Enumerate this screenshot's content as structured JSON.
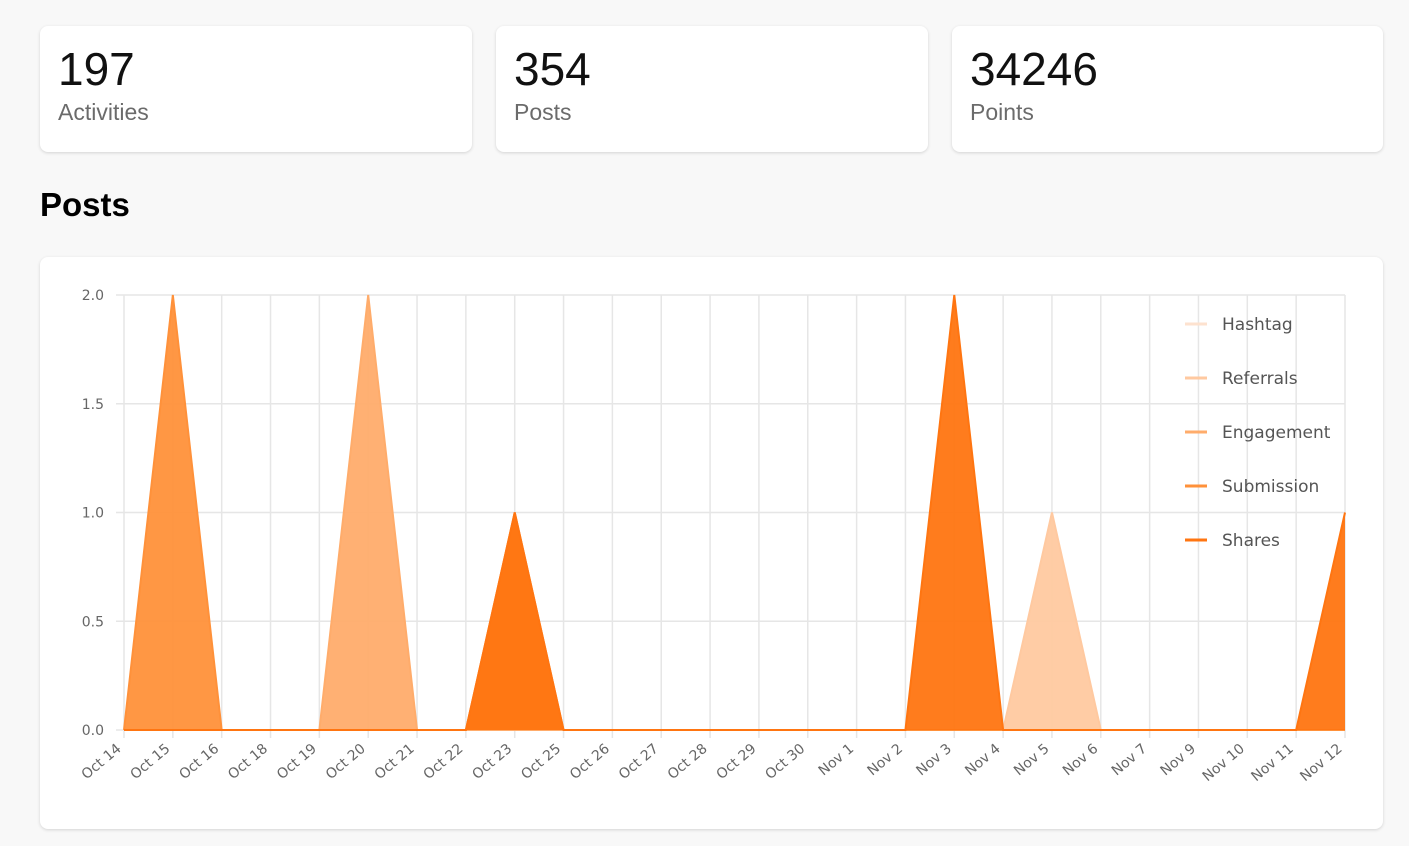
{
  "stats": [
    {
      "value": "197",
      "label": "Activities"
    },
    {
      "value": "354",
      "label": "Posts"
    },
    {
      "value": "34246",
      "label": "Points"
    }
  ],
  "section_title": "Posts",
  "chart_data": {
    "type": "area",
    "title": "",
    "xlabel": "",
    "ylabel": "",
    "ylim": [
      0,
      2
    ],
    "yticks": [
      "0.0",
      "0.5",
      "1.0",
      "1.5",
      "2.0"
    ],
    "grid": true,
    "legend_position": "top-right",
    "categories": [
      "Oct 14",
      "Oct 15",
      "Oct 16",
      "Oct 18",
      "Oct 19",
      "Oct 20",
      "Oct 21",
      "Oct 22",
      "Oct 23",
      "Oct 25",
      "Oct 26",
      "Oct 27",
      "Oct 28",
      "Oct 29",
      "Oct 30",
      "Nov 1",
      "Nov 2",
      "Nov 3",
      "Nov 4",
      "Nov 5",
      "Nov 6",
      "Nov 7",
      "Nov 9",
      "Nov 10",
      "Nov 11",
      "Nov 12"
    ],
    "series": [
      {
        "name": "Hashtag",
        "color": "#fde2cf",
        "values": [
          0,
          0,
          0,
          0,
          0,
          0,
          0,
          0,
          0,
          0,
          0,
          0,
          0,
          0,
          0,
          0,
          0,
          0,
          0,
          0,
          0,
          0,
          0,
          0,
          0,
          0
        ]
      },
      {
        "name": "Referrals",
        "color": "#ffc9a0",
        "values": [
          0,
          0,
          0,
          0,
          0,
          0,
          0,
          0,
          0,
          0,
          0,
          0,
          0,
          0,
          0,
          0,
          0,
          0,
          0,
          1,
          0,
          0,
          0,
          0,
          0,
          0
        ]
      },
      {
        "name": "Engagement",
        "color": "#ffac6b",
        "values": [
          0,
          0,
          0,
          0,
          0,
          2,
          0,
          0,
          0,
          0,
          0,
          0,
          0,
          0,
          0,
          0,
          0,
          0,
          0,
          0,
          0,
          0,
          0,
          0,
          0,
          0
        ]
      },
      {
        "name": "Submission",
        "color": "#ff913a",
        "values": [
          0,
          2,
          0,
          0,
          0,
          0,
          0,
          0,
          1,
          0,
          0,
          0,
          0,
          0,
          0,
          0,
          0,
          0,
          0,
          0,
          0,
          0,
          0,
          0,
          0,
          0
        ]
      },
      {
        "name": "Shares",
        "color": "#ff7511",
        "values": [
          0,
          0,
          0,
          0,
          0,
          0,
          0,
          0,
          1,
          0,
          0,
          0,
          0,
          0,
          0,
          0,
          0,
          2,
          0,
          0,
          0,
          0,
          0,
          0,
          0,
          1
        ]
      }
    ]
  }
}
